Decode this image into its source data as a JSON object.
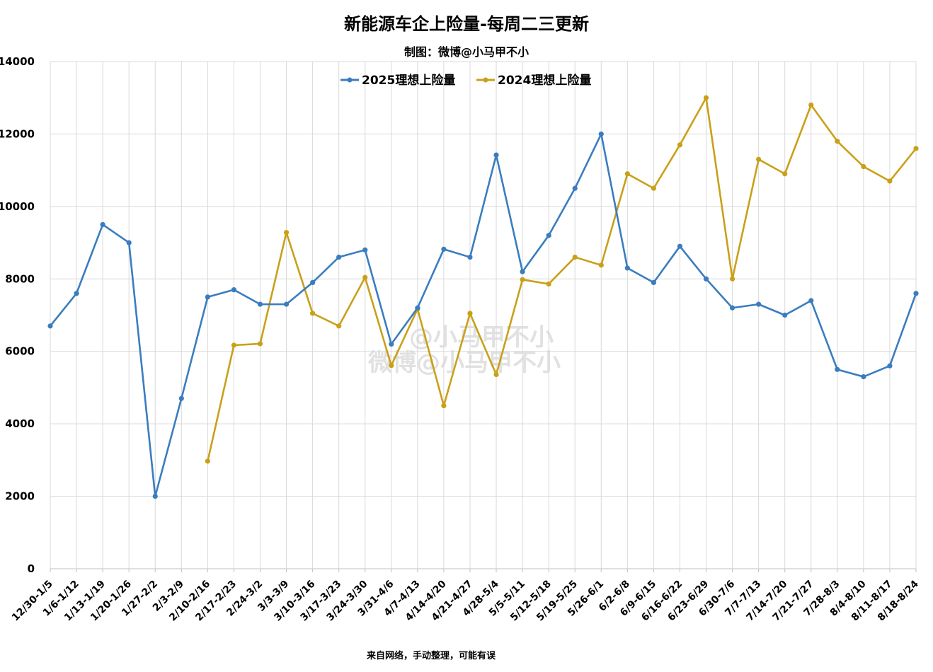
{
  "chart_data": {
    "type": "line",
    "title": "新能源车企上险量-每周二三更新",
    "subtitle": "制图：微博@小马甲不小",
    "footer": "来自网络，手动整理，可能有误",
    "watermark": "@小马甲不小",
    "watermark_line2": "微博@小马甲不小",
    "ylim": [
      0,
      14000
    ],
    "yticks": [
      0,
      2000,
      4000,
      6000,
      8000,
      10000,
      12000,
      14000
    ],
    "grid": true,
    "legend_position": "top",
    "categories": [
      "12/30-1/5",
      "1/6-1/12",
      "1/13-1/19",
      "1/20-1/26",
      "1/27-2/2",
      "2/3-2/9",
      "2/10-2/16",
      "2/17-2/23",
      "2/24-3/2",
      "3/3-3/9",
      "3/10-3/16",
      "3/17-3/23",
      "3/24-3/30",
      "3/31-4/6",
      "4/7-4/13",
      "4/14-4/20",
      "4/21-4/27",
      "4/28-5/4",
      "5/5-5/11",
      "5/12-5/18",
      "5/19-5/25",
      "5/26-6/1",
      "6/2-6/8",
      "6/9-6/15",
      "6/16-6/22",
      "6/23-6/29",
      "6/30-7/6",
      "7/7-7/13",
      "7/14-7/20",
      "7/21-7/27",
      "7/28-8/3",
      "8/4-8/10",
      "8/11-8/17",
      "8/18-8/24"
    ],
    "series": [
      {
        "name": "2025理想上险量",
        "color": "#3a7dbf",
        "values": [
          6700,
          7600,
          9500,
          9000,
          2000,
          4700,
          7500,
          7700,
          7300,
          7300,
          7900,
          8600,
          8800,
          6200,
          7200,
          8820,
          8600,
          11420,
          8200,
          9200,
          10500,
          12000,
          8300,
          7900,
          8900,
          8000,
          7200,
          7300,
          7000,
          7400,
          5500,
          5300,
          5600,
          7600
        ]
      },
      {
        "name": "2024理想上险量",
        "color": "#c9a018",
        "values": [
          null,
          null,
          null,
          null,
          null,
          null,
          2970,
          6170,
          6210,
          9280,
          7050,
          6700,
          8040,
          5610,
          7170,
          4500,
          7050,
          5360,
          7980,
          7860,
          8600,
          8380,
          10900,
          10500,
          11700,
          13000,
          8000,
          11300,
          10900,
          12800,
          11800,
          11100,
          10700,
          11600
        ]
      }
    ]
  }
}
